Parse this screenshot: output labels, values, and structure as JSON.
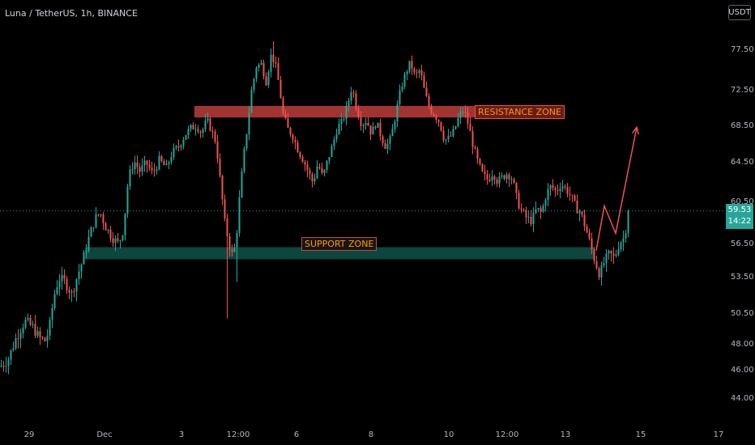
{
  "header": {
    "title": "Luna / TetherUS, 1h, BINANCE",
    "unit": "USDT"
  },
  "current_price": {
    "value": "59.53",
    "countdown": "14:22"
  },
  "annotations": {
    "resistance_label": "RESISTANCE ZONE",
    "support_label": "SUPPORT ZONE"
  },
  "colors": {
    "up": "#26a69a",
    "down": "#ef5350",
    "resistance": "#b23a36",
    "support": "#0e4a40",
    "arrow": "#ef5350",
    "axis_text": "#b2b5be"
  },
  "chart_data": {
    "type": "candlestick",
    "title": "Luna / TetherUS, 1h, BINANCE",
    "y_ticks": [
      44.0,
      46.0,
      48.0,
      50.5,
      53.5,
      56.5,
      60.5,
      64.5,
      68.5,
      72.5,
      77.5
    ],
    "x_ticks": [
      "29",
      "Dec",
      "3",
      "12:00",
      "6",
      "8",
      "10",
      "12:00",
      "13",
      "15",
      "17"
    ],
    "resistance_zone": [
      69.3,
      70.6
    ],
    "support_zone": [
      55.0,
      56.1
    ],
    "last_price": 59.53,
    "price_path": [
      [
        0,
        46.2
      ],
      [
        10,
        46.8
      ],
      [
        20,
        48.5
      ],
      [
        30,
        49.8
      ],
      [
        40,
        49.3
      ],
      [
        48,
        48.4
      ],
      [
        55,
        48.2
      ],
      [
        60,
        49.0
      ],
      [
        66,
        51.8
      ],
      [
        72,
        53.3
      ],
      [
        80,
        53.0
      ],
      [
        88,
        52.0
      ],
      [
        95,
        53.5
      ],
      [
        102,
        55.0
      ],
      [
        110,
        57.2
      ],
      [
        117,
        58.8
      ],
      [
        123,
        59.4
      ],
      [
        130,
        58.0
      ],
      [
        138,
        57.0
      ],
      [
        146,
        56.4
      ],
      [
        152,
        57.8
      ],
      [
        158,
        62.8
      ],
      [
        165,
        64.5
      ],
      [
        172,
        63.5
      ],
      [
        180,
        64.3
      ],
      [
        188,
        63.2
      ],
      [
        196,
        64.6
      ],
      [
        205,
        63.8
      ],
      [
        212,
        65.4
      ],
      [
        220,
        66.1
      ],
      [
        228,
        67.4
      ],
      [
        235,
        68.1
      ],
      [
        242,
        68.4
      ],
      [
        248,
        67.6
      ],
      [
        255,
        69.0
      ],
      [
        260,
        68.0
      ],
      [
        266,
        66.6
      ],
      [
        272,
        62.0
      ],
      [
        277,
        58.4
      ],
      [
        282,
        56.5
      ],
      [
        287,
        55.2
      ],
      [
        291,
        56.8
      ],
      [
        295,
        60.6
      ],
      [
        300,
        64.8
      ],
      [
        305,
        68.4
      ],
      [
        310,
        72.3
      ],
      [
        316,
        75.3
      ],
      [
        322,
        75.6
      ],
      [
        328,
        73.4
      ],
      [
        334,
        76.6
      ],
      [
        339,
        75.8
      ],
      [
        344,
        73.0
      ],
      [
        349,
        69.6
      ],
      [
        355,
        68.0
      ],
      [
        361,
        67.2
      ],
      [
        368,
        65.6
      ],
      [
        375,
        64.4
      ],
      [
        380,
        63.4
      ],
      [
        386,
        62.3
      ],
      [
        392,
        64.3
      ],
      [
        398,
        62.8
      ],
      [
        404,
        64.6
      ],
      [
        410,
        66.2
      ],
      [
        416,
        68.2
      ],
      [
        422,
        68.8
      ],
      [
        428,
        70.5
      ],
      [
        434,
        72.8
      ],
      [
        440,
        70.2
      ],
      [
        446,
        68.5
      ],
      [
        452,
        69.0
      ],
      [
        458,
        67.5
      ],
      [
        464,
        68.8
      ],
      [
        470,
        67.2
      ],
      [
        476,
        66.0
      ],
      [
        482,
        67.0
      ],
      [
        488,
        69.6
      ],
      [
        494,
        72.4
      ],
      [
        500,
        74.4
      ],
      [
        506,
        75.8
      ],
      [
        512,
        74.0
      ],
      [
        518,
        74.9
      ],
      [
        524,
        72.0
      ],
      [
        530,
        70.3
      ],
      [
        536,
        69.6
      ],
      [
        542,
        68.8
      ],
      [
        548,
        66.8
      ],
      [
        554,
        67.0
      ],
      [
        560,
        67.8
      ],
      [
        566,
        69.4
      ],
      [
        572,
        70.2
      ],
      [
        578,
        68.4
      ],
      [
        584,
        66.0
      ],
      [
        590,
        64.2
      ],
      [
        596,
        63.0
      ],
      [
        602,
        62.6
      ],
      [
        608,
        63.4
      ],
      [
        614,
        62.4
      ],
      [
        620,
        62.9
      ],
      [
        626,
        63.3
      ],
      [
        632,
        62.7
      ],
      [
        638,
        60.5
      ],
      [
        644,
        59.4
      ],
      [
        650,
        58.8
      ],
      [
        656,
        58.6
      ],
      [
        662,
        59.7
      ],
      [
        668,
        59.3
      ],
      [
        674,
        61.2
      ],
      [
        680,
        62.0
      ],
      [
        686,
        61.4
      ],
      [
        692,
        62.2
      ],
      [
        698,
        61.7
      ],
      [
        704,
        61.0
      ],
      [
        710,
        59.9
      ],
      [
        716,
        59.4
      ],
      [
        722,
        58.0
      ],
      [
        728,
        56.4
      ],
      [
        734,
        54.8
      ],
      [
        740,
        53.6
      ],
      [
        746,
        54.9
      ],
      [
        752,
        55.5
      ],
      [
        758,
        55.1
      ],
      [
        764,
        56.5
      ],
      [
        770,
        57.0
      ],
      [
        776,
        59.53
      ]
    ],
    "wick_spikes": [
      {
        "x": 280,
        "low": 50.0
      },
      {
        "x": 292,
        "low": 53.0
      },
      {
        "x": 337,
        "high": 78.4
      },
      {
        "x": 742,
        "low": 52.7
      }
    ],
    "projection": [
      [
        736,
        55.8
      ],
      [
        746,
        60.0
      ],
      [
        760,
        57.4
      ],
      [
        786,
        68.2
      ]
    ]
  }
}
